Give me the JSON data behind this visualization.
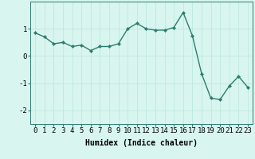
{
  "x": [
    0,
    1,
    2,
    3,
    4,
    5,
    6,
    7,
    8,
    9,
    10,
    11,
    12,
    13,
    14,
    15,
    16,
    17,
    18,
    19,
    20,
    21,
    22,
    23
  ],
  "y": [
    0.85,
    0.7,
    0.45,
    0.5,
    0.35,
    0.4,
    0.2,
    0.35,
    0.35,
    0.45,
    1.0,
    1.2,
    1.0,
    0.95,
    0.95,
    1.05,
    1.6,
    0.75,
    -0.65,
    -1.55,
    -1.6,
    -1.1,
    -0.75,
    -1.15
  ],
  "line_color": "#2d7d6e",
  "marker": "D",
  "marker_size": 2.2,
  "linewidth": 1.0,
  "xlabel": "Humidex (Indice chaleur)",
  "xlabel_fontsize": 7,
  "xlabel_fontweight": "bold",
  "xtick_labels": [
    "0",
    "1",
    "2",
    "3",
    "4",
    "5",
    "6",
    "7",
    "8",
    "9",
    "10",
    "11",
    "12",
    "13",
    "14",
    "15",
    "16",
    "17",
    "18",
    "19",
    "20",
    "21",
    "22",
    "23"
  ],
  "yticks": [
    -2,
    -1,
    0,
    1
  ],
  "ylim": [
    -2.5,
    2.0
  ],
  "xlim": [
    -0.5,
    23.5
  ],
  "bg_color": "#d8f5f0",
  "grid_color": "#c0e8e0",
  "tick_fontsize": 6.5,
  "title": ""
}
